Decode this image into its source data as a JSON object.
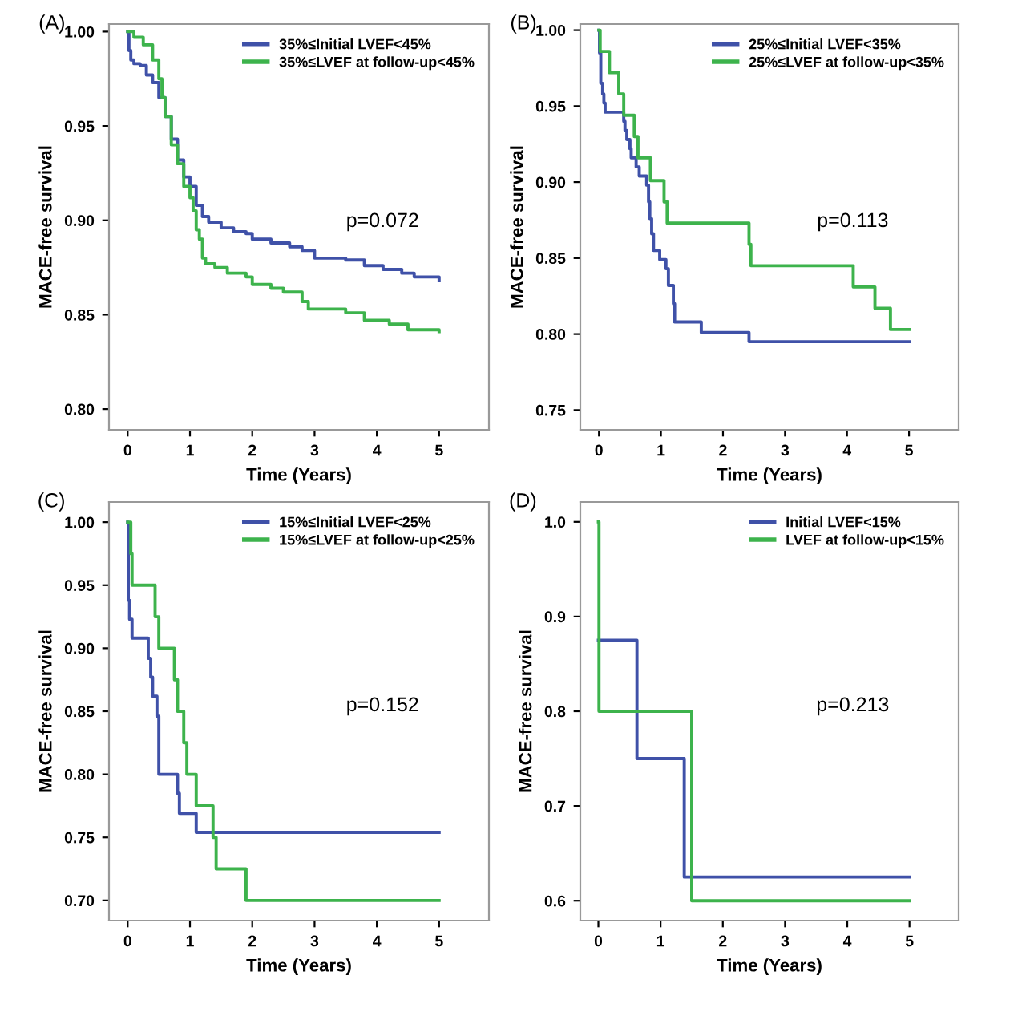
{
  "chart_data": [
    {
      "type": "step",
      "title": "(A)",
      "xlabel": "Time (Years)",
      "ylabel": "MACE-free survival",
      "annotations": [
        "p=0.072"
      ],
      "legend": "top right",
      "grid": false,
      "xlim": [
        -0.3,
        5.8
      ],
      "xticks": [
        0,
        1,
        2,
        3,
        4,
        5
      ],
      "ylim": [
        0.789,
        1.004
      ],
      "yticks": [
        {
          "value": 0.8,
          "label": "0.80"
        },
        {
          "value": 0.85,
          "label": "0.85"
        },
        {
          "value": 0.9,
          "label": "0.90"
        },
        {
          "value": 0.95,
          "label": "0.95"
        },
        {
          "value": 1.0,
          "label": "1.00"
        }
      ],
      "series": [
        {
          "name": "35%≤Initial LVEF<45%",
          "color": "#3f51a8",
          "x": [
            0,
            0.02,
            0.05,
            0.1,
            0.2,
            0.3,
            0.4,
            0.5,
            0.6,
            0.7,
            0.8,
            0.9,
            1.0,
            1.1,
            1.2,
            1.3,
            1.5,
            1.7,
            1.9,
            2.0,
            2.3,
            2.6,
            2.8,
            3.0,
            3.5,
            3.8,
            4.1,
            4.4,
            4.6,
            5.0
          ],
          "values": [
            1.0,
            0.99,
            0.985,
            0.983,
            0.982,
            0.977,
            0.973,
            0.965,
            0.955,
            0.943,
            0.932,
            0.923,
            0.918,
            0.908,
            0.902,
            0.899,
            0.896,
            0.894,
            0.893,
            0.89,
            0.888,
            0.886,
            0.884,
            0.88,
            0.879,
            0.876,
            0.874,
            0.872,
            0.87,
            0.868
          ]
        },
        {
          "name": "35%≤LVEF at follow-up<45%",
          "color": "#3db34c",
          "x": [
            0,
            0.1,
            0.25,
            0.4,
            0.5,
            0.55,
            0.6,
            0.7,
            0.8,
            0.9,
            1.0,
            1.05,
            1.1,
            1.15,
            1.2,
            1.25,
            1.4,
            1.6,
            1.9,
            2.0,
            2.3,
            2.5,
            2.8,
            2.9,
            3.5,
            3.8,
            4.2,
            4.5,
            5.0
          ],
          "values": [
            1.0,
            0.997,
            0.993,
            0.985,
            0.975,
            0.965,
            0.955,
            0.94,
            0.93,
            0.918,
            0.912,
            0.905,
            0.895,
            0.89,
            0.88,
            0.877,
            0.875,
            0.872,
            0.87,
            0.866,
            0.864,
            0.862,
            0.857,
            0.853,
            0.851,
            0.847,
            0.845,
            0.842,
            0.841
          ]
        }
      ]
    },
    {
      "type": "step",
      "title": "(B)",
      "xlabel": "Time (Years)",
      "ylabel": "MACE-free survival",
      "annotations": [
        "p=0.113"
      ],
      "legend": "top right",
      "grid": false,
      "xlim": [
        -0.3,
        5.8
      ],
      "xticks": [
        0,
        1,
        2,
        3,
        4,
        5
      ],
      "ylim": [
        0.737,
        1.004
      ],
      "yticks": [
        {
          "value": 0.75,
          "label": "0.75"
        },
        {
          "value": 0.8,
          "label": "0.80"
        },
        {
          "value": 0.85,
          "label": "0.85"
        },
        {
          "value": 0.9,
          "label": "0.90"
        },
        {
          "value": 0.95,
          "label": "0.95"
        },
        {
          "value": 1.0,
          "label": "1.00"
        }
      ],
      "series": [
        {
          "name": "25%≤Initial LVEF<35%",
          "color": "#3f51a8",
          "x": [
            0,
            0.01,
            0.03,
            0.06,
            0.08,
            0.1,
            0.4,
            0.42,
            0.45,
            0.5,
            0.52,
            0.6,
            0.65,
            0.77,
            0.8,
            0.82,
            0.85,
            0.88,
            0.98,
            1.08,
            1.12,
            1.2,
            1.22,
            1.65,
            2.42,
            5.0
          ],
          "values": [
            1.0,
            0.985,
            0.965,
            0.958,
            0.952,
            0.946,
            0.94,
            0.934,
            0.928,
            0.922,
            0.916,
            0.91,
            0.904,
            0.898,
            0.887,
            0.876,
            0.866,
            0.855,
            0.849,
            0.843,
            0.832,
            0.82,
            0.808,
            0.801,
            0.795,
            0.795
          ]
        },
        {
          "name": "25%≤LVEF at follow-up<35%",
          "color": "#3db34c",
          "x": [
            0,
            0.02,
            0.17,
            0.32,
            0.4,
            0.57,
            0.63,
            0.83,
            1.05,
            1.1,
            2.42,
            2.45,
            4.1,
            4.45,
            4.7,
            5.0
          ],
          "values": [
            1.0,
            0.986,
            0.972,
            0.958,
            0.944,
            0.93,
            0.916,
            0.901,
            0.887,
            0.873,
            0.859,
            0.845,
            0.831,
            0.817,
            0.803,
            0.803
          ]
        }
      ]
    },
    {
      "type": "step",
      "title": "(C)",
      "xlabel": "Time (Years)",
      "ylabel": "MACE-free survival",
      "annotations": [
        "p=0.152"
      ],
      "legend": "top right",
      "grid": false,
      "xlim": [
        -0.3,
        5.8
      ],
      "xticks": [
        0,
        1,
        2,
        3,
        4,
        5
      ],
      "ylim": [
        0.684,
        1.016
      ],
      "yticks": [
        {
          "value": 0.7,
          "label": "0.70"
        },
        {
          "value": 0.75,
          "label": "0.75"
        },
        {
          "value": 0.8,
          "label": "0.80"
        },
        {
          "value": 0.85,
          "label": "0.85"
        },
        {
          "value": 0.9,
          "label": "0.90"
        },
        {
          "value": 0.95,
          "label": "0.95"
        },
        {
          "value": 1.0,
          "label": "1.00"
        }
      ],
      "series": [
        {
          "name": "15%≤Initial LVEF<25%",
          "color": "#3f51a8",
          "x": [
            0,
            0.01,
            0.03,
            0.07,
            0.33,
            0.37,
            0.4,
            0.47,
            0.5,
            0.8,
            0.83,
            1.1,
            5.0
          ],
          "values": [
            1.0,
            0.938,
            0.923,
            0.908,
            0.892,
            0.877,
            0.862,
            0.846,
            0.8,
            0.785,
            0.769,
            0.754,
            0.754
          ]
        },
        {
          "name": "15%≤LVEF at follow-up<25%",
          "color": "#3db34c",
          "x": [
            0,
            0.05,
            0.07,
            0.44,
            0.5,
            0.75,
            0.8,
            0.9,
            0.95,
            1.1,
            1.37,
            1.42,
            1.9,
            5.0
          ],
          "values": [
            1.0,
            0.975,
            0.95,
            0.925,
            0.9,
            0.875,
            0.85,
            0.825,
            0.8,
            0.775,
            0.75,
            0.725,
            0.7,
            0.7
          ]
        }
      ]
    },
    {
      "type": "step",
      "title": "(D)",
      "xlabel": "Time (Years)",
      "ylabel": "MACE-free survival",
      "annotations": [
        "p=0.213"
      ],
      "legend": "top right",
      "grid": false,
      "xlim": [
        -0.29,
        5.79
      ],
      "xticks": [
        0,
        1,
        2,
        3,
        4,
        5
      ],
      "ylim": [
        0.579,
        1.021
      ],
      "yticks": [
        {
          "value": 0.6,
          "label": "0.6"
        },
        {
          "value": 0.7,
          "label": "0.7"
        },
        {
          "value": 0.8,
          "label": "0.8"
        },
        {
          "value": 0.9,
          "label": "0.9"
        },
        {
          "value": 1.0,
          "label": "1.0"
        }
      ],
      "series": [
        {
          "name": "Initial LVEF<15%",
          "color": "#3f51a8",
          "x": [
            0,
            0.62,
            1.38,
            5.0
          ],
          "values": [
            0.875,
            0.75,
            0.625,
            0.625
          ]
        },
        {
          "name": "LVEF at follow-up<15%",
          "color": "#3db34c",
          "x": [
            0,
            0.01,
            1.5,
            5.0
          ],
          "values": [
            1.0,
            0.8,
            0.6,
            0.6
          ]
        }
      ]
    }
  ]
}
